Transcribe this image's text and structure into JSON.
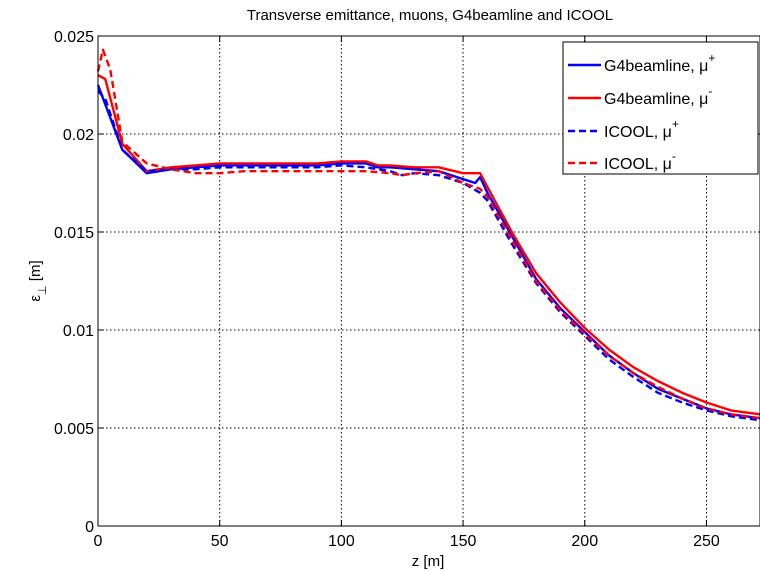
{
  "chart_data": {
    "type": "line",
    "title": "Transverse emittance, muons, G4beamline and ICOOL",
    "xlabel": "z [m]",
    "ylabel_main": "ε",
    "ylabel_sub": "⊥",
    "ylabel_unit": " [m]",
    "xlim": [
      0,
      272
    ],
    "ylim": [
      0,
      0.025
    ],
    "xticks": [
      0,
      50,
      100,
      150,
      200,
      250
    ],
    "xtick_labels": [
      "0",
      "50",
      "100",
      "150",
      "200",
      "250"
    ],
    "yticks": [
      0,
      0.005,
      0.01,
      0.015,
      0.02,
      0.025
    ],
    "ytick_labels": [
      "0",
      "0.005",
      "0.01",
      "0.015",
      "0.02",
      "0.025"
    ],
    "grid": true,
    "legend_position": "top-right",
    "series": [
      {
        "name": "G4beamline, μ",
        "name_sup": "+",
        "color": "#0000ff",
        "dash": "solid",
        "x": [
          0,
          10,
          20,
          30,
          40,
          50,
          60,
          70,
          80,
          90,
          100,
          110,
          115,
          120,
          130,
          140,
          150,
          155,
          157,
          160,
          170,
          180,
          190,
          200,
          210,
          220,
          230,
          240,
          250,
          260,
          272
        ],
        "y": [
          0.0225,
          0.0192,
          0.018,
          0.0182,
          0.0183,
          0.0184,
          0.0184,
          0.0184,
          0.0184,
          0.0184,
          0.0185,
          0.0185,
          0.0183,
          0.0183,
          0.0182,
          0.0181,
          0.0177,
          0.0175,
          0.0178,
          0.017,
          0.0148,
          0.0126,
          0.0111,
          0.0099,
          0.0087,
          0.0078,
          0.007,
          0.0065,
          0.006,
          0.0057,
          0.0055
        ]
      },
      {
        "name": "G4beamline, μ",
        "name_sup": "-",
        "color": "#ff0000",
        "dash": "solid",
        "x": [
          0,
          3,
          10,
          20,
          30,
          40,
          50,
          60,
          70,
          80,
          90,
          100,
          110,
          115,
          120,
          130,
          140,
          150,
          157,
          160,
          170,
          180,
          190,
          200,
          210,
          220,
          230,
          240,
          250,
          260,
          272
        ],
        "y": [
          0.023,
          0.0228,
          0.0195,
          0.0181,
          0.0183,
          0.0184,
          0.0185,
          0.0185,
          0.0185,
          0.0185,
          0.0185,
          0.0186,
          0.0186,
          0.0184,
          0.0184,
          0.0183,
          0.0183,
          0.018,
          0.018,
          0.0173,
          0.015,
          0.0129,
          0.0114,
          0.0101,
          0.009,
          0.0081,
          0.0074,
          0.0068,
          0.0063,
          0.0059,
          0.0057
        ]
      },
      {
        "name": "ICOOL, μ",
        "name_sup": "+",
        "color": "#0000ff",
        "dash": "dashed",
        "x": [
          0,
          3,
          10,
          20,
          30,
          40,
          50,
          60,
          70,
          80,
          90,
          100,
          110,
          120,
          125,
          130,
          140,
          150,
          157,
          160,
          170,
          180,
          190,
          200,
          210,
          220,
          230,
          240,
          250,
          260,
          272
        ],
        "y": [
          0.0222,
          0.0218,
          0.0192,
          0.0181,
          0.0182,
          0.0182,
          0.0183,
          0.0183,
          0.0183,
          0.0183,
          0.0183,
          0.0184,
          0.0183,
          0.0181,
          0.0179,
          0.018,
          0.0179,
          0.0175,
          0.017,
          0.0166,
          0.0144,
          0.0124,
          0.0109,
          0.0097,
          0.0085,
          0.0076,
          0.0068,
          0.0063,
          0.0059,
          0.0056,
          0.0054
        ]
      },
      {
        "name": "ICOOL, μ",
        "name_sup": "-",
        "color": "#ff0000",
        "dash": "dashed",
        "x": [
          0,
          2,
          5,
          10,
          20,
          30,
          40,
          50,
          60,
          70,
          80,
          90,
          100,
          110,
          120,
          125,
          130,
          140,
          150,
          157,
          160,
          170,
          180,
          190,
          200,
          210,
          220,
          230,
          240,
          250,
          260,
          272
        ],
        "y": [
          0.0232,
          0.0243,
          0.0233,
          0.0196,
          0.0185,
          0.0182,
          0.018,
          0.018,
          0.0181,
          0.0181,
          0.0181,
          0.0181,
          0.0181,
          0.0181,
          0.018,
          0.0179,
          0.018,
          0.0181,
          0.0175,
          0.0172,
          0.0168,
          0.0146,
          0.0125,
          0.011,
          0.0098,
          0.0087,
          0.0078,
          0.0071,
          0.0065,
          0.006,
          0.0057,
          0.0055
        ]
      }
    ]
  }
}
